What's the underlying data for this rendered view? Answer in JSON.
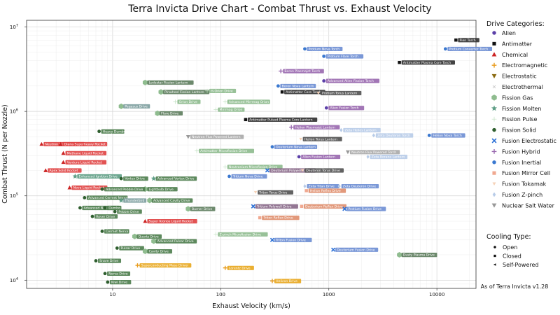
{
  "chart_data": {
    "type": "scatter",
    "title": "Terra Invicta Drive Chart - Combat Thrust vs. Exhaust Velocity",
    "xlabel": "Exhaust Velocity (km/s)",
    "ylabel": "Combat Thrust (N per Nozzle)",
    "xscale": "log",
    "yscale": "log",
    "xlim": [
      1.6,
      23000
    ],
    "ylim": [
      8000,
      12000000
    ],
    "grid": true,
    "x_ticks": [
      {
        "value": 10,
        "label": "10"
      },
      {
        "value": 100,
        "label": "100"
      },
      {
        "value": 1000,
        "label": "1000"
      },
      {
        "value": 10000,
        "label": "10000"
      }
    ],
    "y_ticks": [
      {
        "value": 10000,
        "base": "10",
        "exp": "4"
      },
      {
        "value": 100000,
        "base": "10",
        "exp": "5"
      },
      {
        "value": 1000000,
        "base": "10",
        "exp": "6"
      },
      {
        "value": 10000000,
        "base": "10",
        "exp": "7"
      }
    ],
    "categories": [
      {
        "name": "Alien",
        "color": "#5b3fa8",
        "marker": "circle"
      },
      {
        "name": "Antimatter",
        "color": "#111111",
        "marker": "square"
      },
      {
        "name": "Chemical",
        "color": "#cc2222",
        "marker": "triangle-up"
      },
      {
        "name": "Electromagnetic",
        "color": "#e89a1a",
        "marker": "plus"
      },
      {
        "name": "Electrostatic",
        "color": "#8a6a10",
        "marker": "triangle-down"
      },
      {
        "name": "Electrothermal",
        "color": "#c8c8c8",
        "marker": "x-small"
      },
      {
        "name": "Fission Gas",
        "color": "#8fbc8f",
        "marker": "hexagon"
      },
      {
        "name": "Fission Molten",
        "color": "#5f9e86",
        "marker": "star"
      },
      {
        "name": "Fission Pulse",
        "color": "#c0e0c0",
        "marker": "thin-plus"
      },
      {
        "name": "Fission Solid",
        "color": "#2e5e2e",
        "marker": "circle"
      },
      {
        "name": "Fusion Electrostatic",
        "color": "#2a6fd6",
        "marker": "x"
      },
      {
        "name": "Fusion Hybrid",
        "color": "#9a6ab0",
        "marker": "plus"
      },
      {
        "name": "Fusion Inertial",
        "color": "#3a78d0",
        "marker": "circle"
      },
      {
        "name": "Fusion Mirror Cell",
        "color": "#f0a890",
        "marker": "square"
      },
      {
        "name": "Fusion Tokamak",
        "color": "#f6d2b8",
        "marker": "triangle-down-small"
      },
      {
        "name": "Fusion Z-pinch",
        "color": "#b8cce8",
        "marker": "diamond"
      },
      {
        "name": "Nuclear Salt Water",
        "color": "#999999",
        "marker": "triangle-down"
      }
    ],
    "legend_title": "Drive Categories:",
    "legend_position": "right",
    "cooling_title": "Cooling Type:",
    "cooling_types": [
      {
        "name": "Open",
        "marker": "circle"
      },
      {
        "name": "Closed",
        "marker": "square"
      },
      {
        "name": "Self-Powered",
        "marker": "triangle-left"
      }
    ],
    "points": [
      {
        "name": "Pion Torch",
        "x": 15000,
        "y": 7000000,
        "cat": "Antimatter",
        "label_color": "#333333"
      },
      {
        "name": "Protium Converter Torch",
        "x": 12000,
        "y": 5500000,
        "cat": "Fusion Inertial",
        "label_color": "#6f8fd4"
      },
      {
        "name": "Antimatter Plasma Core Torch",
        "x": 4500,
        "y": 3800000,
        "cat": "Antimatter",
        "label_color": "#333333"
      },
      {
        "name": "Protium Nova Torch",
        "x": 600,
        "y": 5500000,
        "cat": "Fusion Inertial",
        "label_color": "#6f8fd4"
      },
      {
        "name": "Protium Flare Torch",
        "x": 900,
        "y": 4500000,
        "cat": "Fusion Inertial",
        "label_color": "#6f8fd4"
      },
      {
        "name": "Boron Plasmajet Torch",
        "x": 360,
        "y": 3000000,
        "cat": "Fusion Hybrid",
        "label_color": "#9a6ab0"
      },
      {
        "name": "Advanced Alien Fission Torch",
        "x": 900,
        "y": 2300000,
        "cat": "Alien",
        "label_color": "#9a6ab0"
      },
      {
        "name": "Boron Nova Lantern",
        "x": 340,
        "y": 2000000,
        "cat": "Fusion Inertial",
        "label_color": "#6f8fd4"
      },
      {
        "name": "Antimatter Core Torch",
        "x": 370,
        "y": 1700000,
        "cat": "Antimatter",
        "label_color": "#333333"
      },
      {
        "name": "Protium Torus Lantern",
        "x": 800,
        "y": 1650000,
        "cat": "Fusion Tokamak",
        "label_color": "#555555"
      },
      {
        "name": "Alien Fusion Torch",
        "x": 950,
        "y": 1100000,
        "cat": "Alien",
        "label_color": "#9a6ab0"
      },
      {
        "name": "Lodestar Fission Lantern",
        "x": 20,
        "y": 2200000,
        "cat": "Fission Gas",
        "label_color": "#5f7f5f"
      },
      {
        "name": "Pinwheel Fission Lantern",
        "x": 28,
        "y": 1700000,
        "cat": "Fission Gas",
        "label_color": "#5f7f5f"
      },
      {
        "name": "H-Orion Drive",
        "x": 75,
        "y": 1750000,
        "cat": "Fission Pulse",
        "label_color": "#8fbc8f"
      },
      {
        "name": "Advanced Mirrmag Orion",
        "x": 110,
        "y": 1300000,
        "cat": "Fission Pulse",
        "label_color": "#8fbc8f"
      },
      {
        "name": "Pegasus Drive",
        "x": 12,
        "y": 1150000,
        "cat": "Fission Gas",
        "label_color": "#7f9f9f"
      },
      {
        "name": "Orion Drive",
        "x": 38,
        "y": 1300000,
        "cat": "Fission Pulse",
        "label_color": "#8fbc8f"
      },
      {
        "name": "Flare Drive",
        "x": 26,
        "y": 950000,
        "cat": "Fission Gas",
        "label_color": "#5f7f5f"
      },
      {
        "name": "Mirrmag Orion",
        "x": 90,
        "y": 1050000,
        "cat": "Fission Pulse",
        "label_color": "#8fbc8f"
      },
      {
        "name": "Antimatter Pulsed Plasma Core Lantern",
        "x": 170,
        "y": 800000,
        "cat": "Antimatter",
        "label_color": "#333333"
      },
      {
        "name": "Helion Plasmajet Lantern",
        "x": 450,
        "y": 650000,
        "cat": "Fusion Hybrid",
        "label_color": "#9a6ab0"
      },
      {
        "name": "Neutron Flux Powered Lantern",
        "x": 50,
        "y": 500000,
        "cat": "Nuclear Salt Water",
        "label_color": "#aaaaaa"
      },
      {
        "name": "Helion Torus Lantern",
        "x": 550,
        "y": 470000,
        "cat": "Fusion Tokamak",
        "label_color": "#555555"
      },
      {
        "name": "Zeta Helios Lantern",
        "x": 1300,
        "y": 600000,
        "cat": "Fusion Z-pinch",
        "label_color": "#b8cce8"
      },
      {
        "name": "Zeta Deuteron Torch",
        "x": 2600,
        "y": 520000,
        "cat": "Fusion Z-pinch",
        "label_color": "#b8cce8"
      },
      {
        "name": "Helion Nova Torch",
        "x": 8500,
        "y": 520000,
        "cat": "Fusion Inertial",
        "label_color": "#6f8fd4"
      },
      {
        "name": "Antimatter Microfission Drive",
        "x": 60,
        "y": 340000,
        "cat": "Fission Pulse",
        "label_color": "#8fbc8f"
      },
      {
        "name": "Deuterium Nova Lantern",
        "x": 300,
        "y": 380000,
        "cat": "Fusion Inertial",
        "label_color": "#6f8fd4"
      },
      {
        "name": "Neutron Flux Powered Torch",
        "x": 1500,
        "y": 330000,
        "cat": "Nuclear Salt Water",
        "label_color": "#aaaaaa"
      },
      {
        "name": "Alien Fusion Lantern",
        "x": 530,
        "y": 290000,
        "cat": "Alien",
        "label_color": "#9a6ab0"
      },
      {
        "name": "Zeta Borane Lantern",
        "x": 2300,
        "y": 290000,
        "cat": "Fusion Z-pinch",
        "label_color": "#b8cce8"
      },
      {
        "name": "Neutronium Microfission Drive",
        "x": 110,
        "y": 220000,
        "cat": "Fission Pulse",
        "label_color": "#8fbc8f"
      },
      {
        "name": "Deuterium Polywell Drive",
        "x": 270,
        "y": 200000,
        "cat": "Fusion Electrostatic",
        "label_color": "#8a6a8a"
      },
      {
        "name": "Deuteron Torus Drive",
        "x": 570,
        "y": 200000,
        "cat": "Fusion Tokamak",
        "label_color": "#555555"
      },
      {
        "name": "Tritium Nova Drive",
        "x": 120,
        "y": 170000,
        "cat": "Fusion Inertial",
        "label_color": "#6f8fd4"
      },
      {
        "name": "Zeta Titan Drive",
        "x": 600,
        "y": 130000,
        "cat": "Fusion Z-pinch",
        "label_color": "#6f8fd4"
      },
      {
        "name": "Zeta Deuteron Drive",
        "x": 1250,
        "y": 130000,
        "cat": "Fusion Z-pinch",
        "label_color": "#6f8fd4"
      },
      {
        "name": "Helion Reflex Drive",
        "x": 620,
        "y": 115000,
        "cat": "Fusion Mirror Cell",
        "label_color": "#e09070"
      },
      {
        "name": "Triton Torus Drive",
        "x": 210,
        "y": 110000,
        "cat": "Fusion Tokamak",
        "label_color": "#555555"
      },
      {
        "name": "Tritium Polywell Drive",
        "x": 200,
        "y": 75000,
        "cat": "Fusion Electrostatic",
        "label_color": "#8a6a8a"
      },
      {
        "name": "Deuterium Reflex Drive",
        "x": 560,
        "y": 75000,
        "cat": "Fusion Mirror Cell",
        "label_color": "#e09070"
      },
      {
        "name": "Protium Fusion Drive",
        "x": 1400,
        "y": 70000,
        "cat": "Fusion Electrostatic",
        "label_color": "#6f8fd4"
      },
      {
        "name": "Triton Reflex Drive",
        "x": 230,
        "y": 55000,
        "cat": "Fusion Mirror Cell",
        "label_color": "#e09070"
      },
      {
        "name": "Neutron Liquid Rocket",
        "x": 2.2,
        "y": 410000,
        "cat": "Chemical",
        "label_color": "#e04444"
      },
      {
        "name": "Diana Superheavy Rocket",
        "x": 3.3,
        "y": 410000,
        "cat": "Chemical",
        "label_color": "#e04444"
      },
      {
        "name": "Heavy Dumbo",
        "x": 7.5,
        "y": 580000,
        "cat": "Fission Solid",
        "label_color": "#4f7f4f"
      },
      {
        "name": "Methane Liquid Rocket",
        "x": 3.5,
        "y": 320000,
        "cat": "Chemical",
        "label_color": "#e04444"
      },
      {
        "name": "Venture Liquid Rocket",
        "x": 3.5,
        "y": 250000,
        "cat": "Chemical",
        "label_color": "#e04444"
      },
      {
        "name": "Apex Solid Rocket",
        "x": 2.4,
        "y": 200000,
        "cat": "Chemical",
        "label_color": "#e04444"
      },
      {
        "name": "Enhanced Ignition Drive",
        "x": 4.5,
        "y": 170000,
        "cat": "Fission Molten",
        "label_color": "#5f9e86"
      },
      {
        "name": "Nova Liquid Rocket",
        "x": 4,
        "y": 125000,
        "cat": "Chemical",
        "label_color": "#e04444"
      },
      {
        "name": "Vortex Drive",
        "x": 12,
        "y": 160000,
        "cat": "Fission Solid",
        "label_color": "#4f7f4f"
      },
      {
        "name": "Advanced Vortex Drive",
        "x": 24,
        "y": 160000,
        "cat": "Fission Molten",
        "label_color": "#4f7f4f"
      },
      {
        "name": "Lightbulb Drive",
        "x": 20,
        "y": 120000,
        "cat": "Fission Gas",
        "label_color": "#4f7f4f"
      },
      {
        "name": "Advanced Pebble Drive",
        "x": 8,
        "y": 120000,
        "cat": "Fission Solid",
        "label_color": "#4f7f4f"
      },
      {
        "name": "Advanced Cermet Nerva",
        "x": 5.5,
        "y": 95000,
        "cat": "Fission Solid",
        "label_color": "#4f7f4f"
      },
      {
        "name": "Thunderbird",
        "x": 12,
        "y": 88000,
        "cat": "Fission Molten",
        "label_color": "#7f9f9f"
      },
      {
        "name": "Advanced Cavity Drive",
        "x": 22,
        "y": 88000,
        "cat": "Fission Gas",
        "label_color": "#4f7f4f"
      },
      {
        "name": "Advanced Nerva Drive",
        "x": 5,
        "y": 72000,
        "cat": "Fission Solid",
        "label_color": "#4f7f4f"
      },
      {
        "name": "Dumbo",
        "x": 8.5,
        "y": 72000,
        "cat": "Fission Solid",
        "label_color": "#4f7f4f"
      },
      {
        "name": "Pebble Drive",
        "x": 10.5,
        "y": 65000,
        "cat": "Fission Solid",
        "label_color": "#4f7f4f"
      },
      {
        "name": "Burner Drive",
        "x": 50,
        "y": 70000,
        "cat": "Fission Gas",
        "label_color": "#5f7f5f"
      },
      {
        "name": "Rover Drive",
        "x": 6.5,
        "y": 57000,
        "cat": "Fission Solid",
        "label_color": "#4f7f4f"
      },
      {
        "name": "Super Kronos Liquid Rocket",
        "x": 20,
        "y": 50000,
        "cat": "Chemical",
        "label_color": "#e04444"
      },
      {
        "name": "Cermet Nerva",
        "x": 8,
        "y": 38000,
        "cat": "Fission Solid",
        "label_color": "#4f7f4f"
      },
      {
        "name": "Quartz Drive",
        "x": 16,
        "y": 33000,
        "cat": "Fission Gas",
        "label_color": "#4f7f4f"
      },
      {
        "name": "Advanced Pulsar Drive",
        "x": 24,
        "y": 29000,
        "cat": "Fission Gas",
        "label_color": "#4f7f4f"
      },
      {
        "name": "Z-pinch Microfission Drive",
        "x": 90,
        "y": 35000,
        "cat": "Fission Pulse",
        "label_color": "#8fbc8f"
      },
      {
        "name": "Pulsar Drive",
        "x": 11,
        "y": 24000,
        "cat": "Fission Solid",
        "label_color": "#4f7f4f"
      },
      {
        "name": "Cavity Drive",
        "x": 20,
        "y": 22000,
        "cat": "Fission Gas",
        "label_color": "#4f7f4f"
      },
      {
        "name": "Triton Fusion Drive",
        "x": 300,
        "y": 30000,
        "cat": "Fusion Electrostatic",
        "label_color": "#6f8fd4"
      },
      {
        "name": "Deuterium Fusion Drive",
        "x": 1100,
        "y": 23000,
        "cat": "Fusion Electrostatic",
        "label_color": "#6f8fd4"
      },
      {
        "name": "Dusty Plasma Drive",
        "x": 4500,
        "y": 20000,
        "cat": "Fission Gas",
        "label_color": "#5f7f5f"
      },
      {
        "name": "Snare Drive",
        "x": 7,
        "y": 17000,
        "cat": "Fission Solid",
        "label_color": "#4f7f4f"
      },
      {
        "name": "Superconducting Mass Driver",
        "x": 17,
        "y": 15000,
        "cat": "Electromagnetic",
        "label_color": "#e8a820"
      },
      {
        "name": "Lorentz Drive",
        "x": 110,
        "y": 14000,
        "cat": "Electromagnetic",
        "label_color": "#e8a820"
      },
      {
        "name": "Nerva Drive",
        "x": 8.5,
        "y": 12000,
        "cat": "Fission Solid",
        "label_color": "#4f7f4f"
      },
      {
        "name": "Kiwi Drive",
        "x": 9,
        "y": 9500,
        "cat": "Fission Solid",
        "label_color": "#4f7f4f"
      },
      {
        "name": "Helicon Drive",
        "x": 300,
        "y": 9800,
        "cat": "Electromagnetic",
        "label_color": "#e8a820"
      }
    ],
    "annotation": "As of Terra Invicta v1.28"
  }
}
